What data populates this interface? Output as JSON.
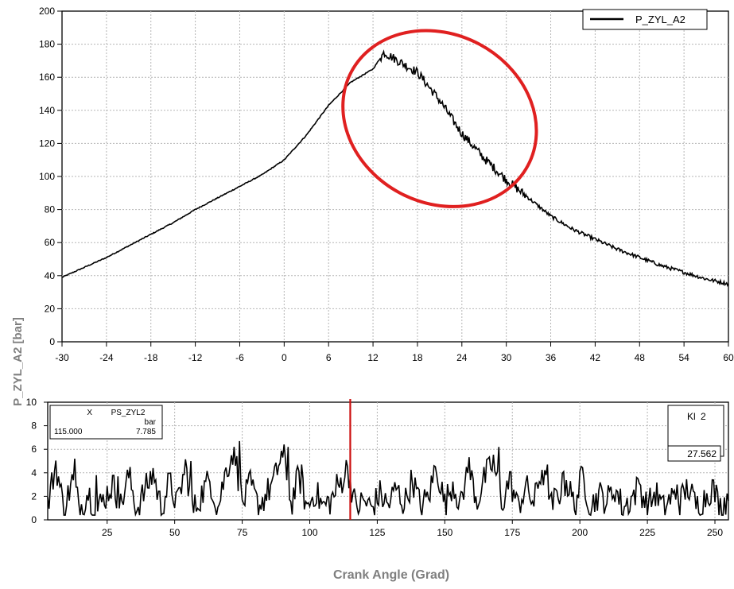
{
  "chart_data": [
    {
      "type": "line",
      "xlim": [
        -30,
        60
      ],
      "ylim": [
        0,
        200
      ],
      "x_ticks": [
        -30,
        -24,
        -18,
        -12,
        -6,
        0,
        6,
        12,
        18,
        24,
        30,
        36,
        42,
        48,
        54,
        60
      ],
      "y_ticks": [
        0,
        20,
        40,
        60,
        80,
        100,
        120,
        140,
        160,
        180,
        200
      ],
      "x_tick_labels": [
        "-30",
        "-24",
        "-18",
        "-12",
        "-6",
        "0",
        "6",
        "12",
        "18",
        "24",
        "30",
        "36",
        "42",
        "48",
        "54",
        "60"
      ],
      "y_tick_labels": [
        "0",
        "20",
        "40",
        "60",
        "80",
        "100",
        "120",
        "140",
        "160",
        "180",
        "200"
      ],
      "grid": true,
      "legend": {
        "position": "top-right",
        "entries": [
          "P_ZYL_A2"
        ]
      },
      "series": [
        {
          "name": "P_ZYL_A2",
          "color": "#000000",
          "x": [
            -30,
            -27,
            -24,
            -21,
            -18,
            -15,
            -12,
            -9,
            -6,
            -3,
            0,
            3,
            6,
            9,
            12,
            13.5,
            15,
            18,
            21,
            24,
            27,
            30,
            33,
            36,
            39,
            42,
            45,
            48,
            51,
            54,
            57,
            60
          ],
          "y": [
            39,
            45,
            51,
            58,
            65,
            72,
            80,
            87,
            94,
            101,
            110,
            125,
            143,
            157,
            165,
            175,
            171,
            163,
            146,
            126,
            111,
            98,
            87,
            76,
            68,
            62,
            56,
            51,
            46,
            42,
            38,
            35
          ],
          "noise_from_x": 13,
          "noise_to_x": 33
        }
      ],
      "annotations": [
        {
          "type": "ellipse",
          "color": "#e02020",
          "x_range": [
            7.5,
            34.5
          ],
          "y_range": [
            84,
            186
          ]
        }
      ]
    },
    {
      "type": "line",
      "xlabel": "Crank Angle (Grad)",
      "xlim": [
        3,
        255
      ],
      "ylim": [
        0,
        10
      ],
      "x_ticks": [
        25,
        50,
        75,
        100,
        125,
        150,
        175,
        200,
        225,
        250
      ],
      "y_ticks": [
        0,
        2,
        4,
        6,
        8,
        10
      ],
      "x_tick_labels": [
        "25",
        "50",
        "75",
        "100",
        "125",
        "150",
        "175",
        "200",
        "225",
        "250"
      ],
      "y_tick_labels": [
        "0",
        "2",
        "4",
        "6",
        "8",
        "10"
      ],
      "grid": true,
      "series": [
        {
          "name": "PS_ZYL2",
          "color": "#000000",
          "x": [
            3,
            6,
            9,
            12,
            15,
            18,
            21,
            24,
            27,
            30,
            33,
            36,
            39,
            42,
            45,
            48,
            51,
            54,
            57,
            60,
            63,
            66,
            69,
            72,
            75,
            78,
            81,
            84,
            87,
            90,
            93,
            96,
            99,
            102,
            105,
            108,
            111,
            114,
            117,
            120,
            123,
            126,
            129,
            132,
            135,
            138,
            141,
            144,
            147,
            150,
            153,
            156,
            159,
            162,
            165,
            168,
            171,
            174,
            177,
            180,
            183,
            186,
            189,
            192,
            195,
            198,
            201,
            204,
            207,
            210,
            213,
            216,
            219,
            222,
            225,
            228,
            231,
            234,
            237,
            240,
            243,
            246,
            249,
            252,
            255
          ],
          "y": [
            1.2,
            4.8,
            0.8,
            3.3,
            1.0,
            2.4,
            0.7,
            1.9,
            3.0,
            1.2,
            3.8,
            0.9,
            2.5,
            4.0,
            1.0,
            3.2,
            1.3,
            4.5,
            0.8,
            2.2,
            3.5,
            1.0,
            4.2,
            6.1,
            1.3,
            3.0,
            1.1,
            2.2,
            3.4,
            6.0,
            1.2,
            3.8,
            1.0,
            2.4,
            1.1,
            1.7,
            2.9,
            4.5,
            1.0,
            1.6,
            1.0,
            2.2,
            1.2,
            2.7,
            1.3,
            3.5,
            1.1,
            2.0,
            4.5,
            1.3,
            3.2,
            1.2,
            4.4,
            1.6,
            3.7,
            4.9,
            1.3,
            3.5,
            1.1,
            2.8,
            1.4,
            4.4,
            1.0,
            2.2,
            3.3,
            1.2,
            3.8,
            1.1,
            2.2,
            1.6,
            2.7,
            1.0,
            1.8,
            2.9,
            1.1,
            2.3,
            0.9,
            2.0,
            1.5,
            2.8,
            1.2,
            1.8,
            2.8,
            1.1,
            2.0
          ],
          "spikes": [
            [
              13,
              5.2
            ],
            [
              21,
              3.8
            ],
            [
              29,
              3.7
            ],
            [
              42,
              4.4
            ],
            [
              56,
              5.0
            ],
            [
              72,
              6.2
            ],
            [
              74,
              6.7
            ],
            [
              90,
              5.3
            ],
            [
              92,
              6.2
            ],
            [
              97,
              4.7
            ],
            [
              110,
              3.9
            ],
            [
              114,
              4.5
            ],
            [
              146,
              4.6
            ],
            [
              158,
              4.5
            ],
            [
              166,
              5.2
            ],
            [
              170,
              6.2
            ],
            [
              188,
              4.7
            ],
            [
              194,
              4.1
            ],
            [
              222,
              3.1
            ],
            [
              236,
              3.0
            ]
          ]
        }
      ],
      "cursor": {
        "x": 115,
        "color": "#cc1111"
      },
      "cursor_readout": {
        "x_label": "X",
        "channel": "PS_ZYL2",
        "unit": "bar",
        "x_value": "115.000",
        "y_value": "7.785"
      },
      "kl_box": {
        "label": "Kl",
        "index": "2",
        "value": "27.562"
      }
    }
  ],
  "shared_ylabel": "P_ZYL_A2 [bar]"
}
